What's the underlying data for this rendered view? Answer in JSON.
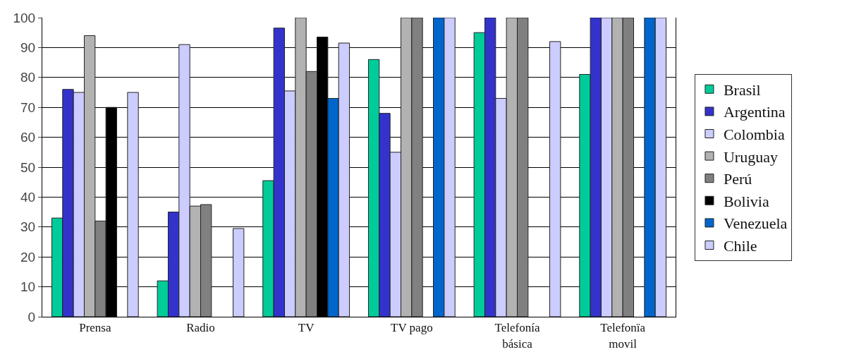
{
  "chart_data": {
    "type": "bar",
    "categories": [
      "Prensa",
      "Radio",
      "TV",
      "TV pago",
      "Telefonía\nbásica",
      "Telefonïa\nmovil"
    ],
    "series": [
      {
        "name": "Brasil",
        "color": "#00cc99",
        "values": [
          33,
          12,
          45.5,
          86,
          95,
          81
        ]
      },
      {
        "name": "Argentina",
        "color": "#3333cc",
        "values": [
          76,
          35,
          96.5,
          68,
          100,
          100
        ]
      },
      {
        "name": "Colombia",
        "color": "#ccccff",
        "values": [
          75,
          91,
          75.5,
          55,
          73,
          100
        ]
      },
      {
        "name": "Uruguay",
        "color": "#b2b2b2",
        "values": [
          94,
          37,
          100,
          100,
          100,
          100
        ]
      },
      {
        "name": "Perú",
        "color": "#808080",
        "values": [
          32,
          37.5,
          82,
          100,
          100,
          100
        ]
      },
      {
        "name": "Bolivia",
        "color": "#000000",
        "values": [
          70,
          null,
          93.5,
          null,
          null,
          null
        ]
      },
      {
        "name": "Venezuela",
        "color": "#0066cc",
        "values": [
          null,
          null,
          73,
          100,
          null,
          100
        ]
      },
      {
        "name": "Chile",
        "color": "#ccccff",
        "values": [
          75,
          29.5,
          91.5,
          100,
          92,
          100
        ]
      }
    ],
    "ylim": [
      0,
      100
    ],
    "yticks": [
      0,
      10,
      20,
      30,
      40,
      50,
      60,
      70,
      80,
      90,
      100
    ],
    "grid": "y",
    "legend": "right"
  }
}
